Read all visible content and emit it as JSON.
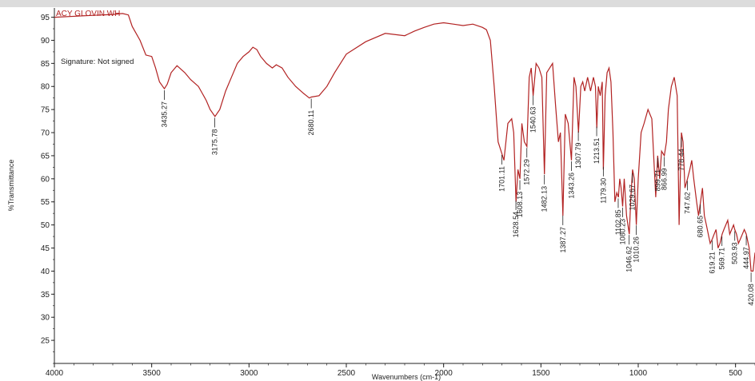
{
  "header_text": "ACY GLOVIN WH",
  "signature": "Signature: Not signed",
  "colors": {
    "spectrum": "#b22222",
    "axes": "#222222",
    "topbar": "#dcdcdc"
  },
  "chart_data": {
    "type": "line",
    "xlabel": "Wavenumbers (cm-1)",
    "ylabel": "%Transmittance",
    "xlim": [
      4000,
      400
    ],
    "x_reversed": true,
    "ylim": [
      20,
      97
    ],
    "x_ticks": [
      4000,
      3500,
      3000,
      2500,
      2000,
      1500,
      1000,
      500
    ],
    "y_ticks": [
      25,
      30,
      35,
      40,
      45,
      50,
      55,
      60,
      65,
      70,
      75,
      80,
      85,
      90,
      95
    ],
    "grid": false,
    "series": [
      {
        "x": [
          4000,
          3850,
          3700,
          3650,
          3620,
          3600,
          3560,
          3530,
          3500,
          3480,
          3460,
          3435,
          3420,
          3400,
          3370,
          3330,
          3300,
          3260,
          3220,
          3200,
          3175,
          3150,
          3120,
          3090,
          3060,
          3030,
          3000,
          2980,
          2960,
          2940,
          2910,
          2880,
          2860,
          2830,
          2800,
          2760,
          2720,
          2690,
          2680,
          2640,
          2600,
          2560,
          2500,
          2400,
          2300,
          2200,
          2150,
          2100,
          2050,
          2000,
          1950,
          1900,
          1850,
          1800,
          1780,
          1760,
          1740,
          1720,
          1701,
          1690,
          1670,
          1650,
          1640,
          1628,
          1618,
          1608,
          1598,
          1585,
          1572,
          1560,
          1550,
          1540,
          1525,
          1510,
          1495,
          1482,
          1470,
          1455,
          1440,
          1425,
          1410,
          1400,
          1387,
          1375,
          1360,
          1343,
          1330,
          1320,
          1307,
          1295,
          1285,
          1275,
          1260,
          1245,
          1230,
          1220,
          1213,
          1205,
          1195,
          1185,
          1179,
          1170,
          1160,
          1150,
          1140,
          1130,
          1120,
          1110,
          1102,
          1095,
          1088,
          1080,
          1072,
          1060,
          1046,
          1038,
          1029,
          1020,
          1010,
          1000,
          985,
          970,
          950,
          930,
          910,
          900,
          890,
          880,
          866,
          855,
          845,
          830,
          815,
          800,
          790,
          778,
          770,
          760,
          747,
          735,
          725,
          715,
          700,
          690,
          680,
          670,
          660,
          650,
          640,
          630,
          619,
          610,
          600,
          590,
          580,
          569,
          560,
          550,
          540,
          530,
          520,
          510,
          504,
          495,
          485,
          475,
          465,
          455,
          445,
          440,
          430,
          420,
          410,
          400
        ],
        "y": [
          95,
          95.3,
          95.6,
          95.8,
          95.5,
          93,
          90,
          86.8,
          86.5,
          84,
          81,
          79.5,
          80.5,
          83,
          84.5,
          83,
          81.5,
          80,
          77,
          75,
          73.5,
          75,
          79,
          82,
          85,
          86.5,
          87.5,
          88.5,
          88,
          86.5,
          85,
          84,
          84.7,
          84,
          82,
          80,
          78.5,
          77.5,
          77.7,
          78,
          80,
          83,
          87,
          89.7,
          91.5,
          91,
          92,
          92.8,
          93.5,
          93.8,
          93.5,
          93.2,
          93.5,
          92.8,
          92.3,
          90,
          80,
          68,
          65.5,
          64,
          72,
          73,
          70,
          55,
          62,
          60,
          72,
          68,
          67,
          82,
          84,
          78,
          85,
          84,
          82,
          61,
          83,
          84,
          85,
          76,
          68,
          70,
          52,
          74,
          72,
          64,
          82,
          80,
          70,
          80,
          81,
          79,
          82,
          79,
          82,
          80,
          71,
          80,
          78,
          81,
          62,
          78,
          83,
          84,
          81,
          70,
          55,
          57,
          56,
          60,
          58,
          54,
          60,
          52,
          48,
          56,
          62,
          60,
          50,
          60,
          70,
          72,
          75,
          73,
          56,
          65,
          60,
          66,
          65,
          68,
          75,
          80,
          82,
          78,
          50,
          70,
          68,
          58,
          60,
          62,
          64,
          60,
          55,
          52,
          55,
          58,
          52,
          50,
          48,
          46,
          47,
          48,
          49,
          45,
          46,
          48,
          49,
          50,
          51,
          48,
          49,
          50,
          49,
          48,
          46,
          47,
          48,
          49,
          48,
          47,
          45,
          40,
          40,
          44
        ]
      }
    ],
    "peak_labels": [
      {
        "x": 3435.27,
        "label": "3435.27"
      },
      {
        "x": 3175.78,
        "label": "3175.78"
      },
      {
        "x": 2680.11,
        "label": "2680.11"
      },
      {
        "x": 1701.11,
        "label": "1701.11"
      },
      {
        "x": 1628.54,
        "label": "1628.54"
      },
      {
        "x": 1608.13,
        "label": "1608.13"
      },
      {
        "x": 1572.29,
        "label": "1572.29"
      },
      {
        "x": 1540.63,
        "label": "1540.63"
      },
      {
        "x": 1482.13,
        "label": "1482.13"
      },
      {
        "x": 1387.27,
        "label": "1387.27"
      },
      {
        "x": 1343.26,
        "label": "1343.26"
      },
      {
        "x": 1307.79,
        "label": "1307.79"
      },
      {
        "x": 1213.51,
        "label": "1213.51"
      },
      {
        "x": 1179.3,
        "label": "1179.30"
      },
      {
        "x": 1102.85,
        "label": "1102.85"
      },
      {
        "x": 1080.23,
        "label": "1080.23"
      },
      {
        "x": 1046.62,
        "label": "1046.62"
      },
      {
        "x": 1029.67,
        "label": "1029.67"
      },
      {
        "x": 1010.26,
        "label": "1010.26"
      },
      {
        "x": 899.71,
        "label": "899.71"
      },
      {
        "x": 866.99,
        "label": "866.99"
      },
      {
        "x": 778.44,
        "label": "778.44"
      },
      {
        "x": 747.62,
        "label": "747.62"
      },
      {
        "x": 680.65,
        "label": "680.65"
      },
      {
        "x": 619.21,
        "label": "619.21"
      },
      {
        "x": 569.71,
        "label": "569.71"
      },
      {
        "x": 503.93,
        "label": "503.93"
      },
      {
        "x": 444.97,
        "label": "444.97"
      },
      {
        "x": 420.08,
        "label": "420.08"
      }
    ]
  }
}
